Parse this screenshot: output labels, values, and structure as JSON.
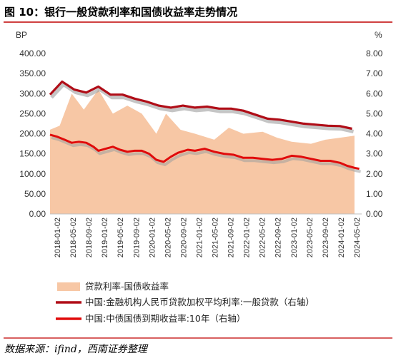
{
  "title": "图 10：银行一般贷款利率和国债收益率走势情况",
  "source": "数据来源：ifind，西南证券整理",
  "colors": {
    "spread_fill": "#f7c7a5",
    "loan_rate": "#b00d17",
    "bond_yield": "#e00b0b",
    "border": "#c00000",
    "shadow": "#9e9e9e"
  },
  "chart_data": {
    "type": "area",
    "title": "",
    "left_axis": {
      "label": "BP",
      "ylim": [
        0,
        400
      ],
      "ticks": [
        "0.00",
        "50.00",
        "100.00",
        "150.00",
        "200.00",
        "250.00",
        "300.00",
        "350.00",
        "400.00"
      ]
    },
    "right_axis": {
      "label": "%",
      "ylim": [
        0,
        8
      ],
      "ticks": [
        "0.00",
        "1.00",
        "2.00",
        "3.00",
        "4.00",
        "5.00",
        "6.00",
        "7.00",
        "8.00"
      ]
    },
    "x_ticks": [
      "2018-01-02",
      "2018-05-02",
      "2018-09-02",
      "2019-01-02",
      "2019-05-02",
      "2019-09-02",
      "2020-01-02",
      "2020-05-02",
      "2020-09-02",
      "2021-01-02",
      "2021-05-02",
      "2021-09-02",
      "2022-01-02",
      "2022-05-02",
      "2022-09-02",
      "2023-01-02",
      "2023-05-02",
      "2023-09-02",
      "2024-01-02",
      "2024-05-02"
    ],
    "grid": false,
    "legend_position": "bottom",
    "series": [
      {
        "name": "贷款利率-国债收益率",
        "type": "area",
        "axis": "left",
        "values": [
          [
            2018.0,
            210
          ],
          [
            2018.2,
            220
          ],
          [
            2018.45,
            300
          ],
          [
            2018.7,
            260
          ],
          [
            2019.0,
            310
          ],
          [
            2019.3,
            250
          ],
          [
            2019.6,
            270
          ],
          [
            2019.9,
            250
          ],
          [
            2020.2,
            200
          ],
          [
            2020.4,
            250
          ],
          [
            2020.7,
            210
          ],
          [
            2021.0,
            200
          ],
          [
            2021.4,
            185
          ],
          [
            2021.7,
            215
          ],
          [
            2022.0,
            200
          ],
          [
            2022.4,
            205
          ],
          [
            2022.7,
            190
          ],
          [
            2023.0,
            180
          ],
          [
            2023.4,
            175
          ],
          [
            2023.7,
            185
          ],
          [
            2024.0,
            190
          ],
          [
            2024.3,
            195
          ]
        ]
      },
      {
        "name": "中国:金融机构人民币贷款加权平均利率:一般贷款（右轴）",
        "type": "line",
        "axis": "right",
        "values": [
          [
            2018.0,
            5.95
          ],
          [
            2018.25,
            6.6
          ],
          [
            2018.5,
            6.2
          ],
          [
            2018.75,
            6.05
          ],
          [
            2019.0,
            6.35
          ],
          [
            2019.25,
            5.95
          ],
          [
            2019.5,
            5.95
          ],
          [
            2019.75,
            5.75
          ],
          [
            2020.0,
            5.6
          ],
          [
            2020.25,
            5.4
          ],
          [
            2020.5,
            5.3
          ],
          [
            2020.75,
            5.4
          ],
          [
            2021.0,
            5.3
          ],
          [
            2021.25,
            5.35
          ],
          [
            2021.5,
            5.25
          ],
          [
            2021.75,
            5.25
          ],
          [
            2022.0,
            5.15
          ],
          [
            2022.25,
            4.95
          ],
          [
            2022.5,
            4.75
          ],
          [
            2022.75,
            4.7
          ],
          [
            2023.0,
            4.6
          ],
          [
            2023.25,
            4.5
          ],
          [
            2023.5,
            4.45
          ],
          [
            2023.75,
            4.4
          ],
          [
            2024.0,
            4.38
          ],
          [
            2024.25,
            4.25
          ]
        ]
      },
      {
        "name": "中国:中债国债到期收益率:10年（右轴）",
        "type": "line",
        "axis": "right",
        "values": [
          [
            2018.0,
            3.95
          ],
          [
            2018.15,
            3.85
          ],
          [
            2018.3,
            3.7
          ],
          [
            2018.45,
            3.55
          ],
          [
            2018.6,
            3.6
          ],
          [
            2018.75,
            3.55
          ],
          [
            2018.9,
            3.35
          ],
          [
            2019.0,
            3.15
          ],
          [
            2019.15,
            3.25
          ],
          [
            2019.3,
            3.35
          ],
          [
            2019.45,
            3.2
          ],
          [
            2019.6,
            3.1
          ],
          [
            2019.75,
            3.15
          ],
          [
            2019.9,
            3.15
          ],
          [
            2020.05,
            3.0
          ],
          [
            2020.2,
            2.7
          ],
          [
            2020.35,
            2.6
          ],
          [
            2020.5,
            2.85
          ],
          [
            2020.65,
            3.05
          ],
          [
            2020.85,
            3.2
          ],
          [
            2021.0,
            3.15
          ],
          [
            2021.2,
            3.25
          ],
          [
            2021.4,
            3.1
          ],
          [
            2021.6,
            3.0
          ],
          [
            2021.8,
            2.95
          ],
          [
            2022.0,
            2.8
          ],
          [
            2022.2,
            2.8
          ],
          [
            2022.4,
            2.75
          ],
          [
            2022.6,
            2.7
          ],
          [
            2022.8,
            2.75
          ],
          [
            2023.0,
            2.9
          ],
          [
            2023.2,
            2.85
          ],
          [
            2023.4,
            2.75
          ],
          [
            2023.6,
            2.65
          ],
          [
            2023.8,
            2.65
          ],
          [
            2024.0,
            2.55
          ],
          [
            2024.15,
            2.4
          ],
          [
            2024.3,
            2.3
          ],
          [
            2024.4,
            2.25
          ]
        ]
      }
    ]
  }
}
